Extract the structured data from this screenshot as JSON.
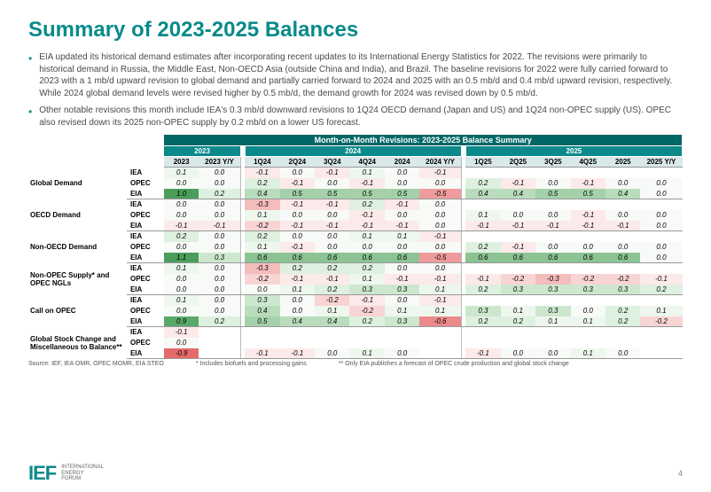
{
  "title": "Summary of 2023-2025 Balances",
  "bullets": [
    "EIA updated its historical demand estimates after incorporating recent updates to its International Energy Statistics for 2022. The revisions were primarily to historical demand in Russia, the Middle East, Non-OECD Asia (outside China and India), and Brazil. The baseline revisions for 2022 were fully carried forward to 2023 with a 1 mb/d upward revision to global demand and partially carried forward to 2024 and 2025 with an 0.5 mb/d and 0.4 mb/d upward revision, respectively. While 2024 global demand levels were revised higher by 0.5 mb/d, the demand growth for 2024 was revised down by 0.5 mb/d.",
    "Other notable revisions this month include IEA's 0.3 mb/d downward revisions to 1Q24 OECD demand (Japan and US) and 1Q24 non-OPEC supply (US). OPEC also revised down its 2025 non-OPEC supply by 0.2 mb/d on a lower US forecast."
  ],
  "table": {
    "header_main": "Month-on-Month Revisions: 2023-2025 Balance Summary",
    "year_headers": [
      "2023",
      "2024",
      "2025"
    ],
    "cols_2023": [
      "2023",
      "2023 Y/Y"
    ],
    "cols_2024": [
      "1Q24",
      "2Q24",
      "3Q24",
      "4Q24",
      "2024",
      "2024 Y/Y"
    ],
    "cols_2025": [
      "1Q25",
      "2Q25",
      "3Q25",
      "4Q25",
      "2025",
      "2025 Y/Y"
    ],
    "row_groups": [
      {
        "label": "Global Demand",
        "rows": [
          {
            "agency": "IEA",
            "v2023": [
              "0.1",
              "0.0"
            ],
            "v2024": [
              "-0.1",
              "0.0",
              "-0.1",
              "0.1",
              "0.0",
              "-0.1"
            ],
            "v2025": [
              "",
              "",
              "",
              "",
              "",
              ""
            ]
          },
          {
            "agency": "OPEC",
            "v2023": [
              "0.0",
              "0.0"
            ],
            "v2024": [
              "0.2",
              "-0.1",
              "0.0",
              "-0.1",
              "0.0",
              "0.0"
            ],
            "v2025": [
              "0.2",
              "-0.1",
              "0.0",
              "-0.1",
              "0.0",
              "0.0"
            ]
          },
          {
            "agency": "EIA",
            "v2023": [
              "1.0",
              "0.2"
            ],
            "v2024": [
              "0.4",
              "0.5",
              "0.5",
              "0.5",
              "0.5",
              "-0.5"
            ],
            "v2025": [
              "0.4",
              "0.4",
              "0.5",
              "0.5",
              "0.4",
              "0.0"
            ]
          }
        ]
      },
      {
        "label": "OECD Demand",
        "rows": [
          {
            "agency": "IEA",
            "v2023": [
              "0.0",
              "0.0"
            ],
            "v2024": [
              "-0.3",
              "-0.1",
              "-0.1",
              "0.2",
              "-0.1",
              "0.0"
            ],
            "v2025": [
              "",
              "",
              "",
              "",
              "",
              ""
            ]
          },
          {
            "agency": "OPEC",
            "v2023": [
              "0.0",
              "0.0"
            ],
            "v2024": [
              "0.1",
              "0.0",
              "0.0",
              "-0.1",
              "0.0",
              "0.0"
            ],
            "v2025": [
              "0.1",
              "0.0",
              "0.0",
              "-0.1",
              "0.0",
              "0.0"
            ]
          },
          {
            "agency": "EIA",
            "v2023": [
              "-0.1",
              "-0.1"
            ],
            "v2024": [
              "-0.2",
              "-0.1",
              "-0.1",
              "-0.1",
              "-0.1",
              "0.0"
            ],
            "v2025": [
              "-0.1",
              "-0.1",
              "-0.1",
              "-0.1",
              "-0.1",
              "0.0"
            ]
          }
        ]
      },
      {
        "label": "Non-OECD Demand",
        "rows": [
          {
            "agency": "IEA",
            "v2023": [
              "0.2",
              "0.0"
            ],
            "v2024": [
              "0.2",
              "0.0",
              "0.0",
              "0.1",
              "0.1",
              "-0.1"
            ],
            "v2025": [
              "",
              "",
              "",
              "",
              "",
              ""
            ]
          },
          {
            "agency": "OPEC",
            "v2023": [
              "0.0",
              "0.0"
            ],
            "v2024": [
              "0.1",
              "-0.1",
              "0.0",
              "0.0",
              "0.0",
              "0.0"
            ],
            "v2025": [
              "0.2",
              "-0.1",
              "0.0",
              "0.0",
              "0.0",
              "0.0"
            ]
          },
          {
            "agency": "EIA",
            "v2023": [
              "1.1",
              "0.3"
            ],
            "v2024": [
              "0.6",
              "0.6",
              "0.6",
              "0.6",
              "0.6",
              "-0.5"
            ],
            "v2025": [
              "0.6",
              "0.6",
              "0.6",
              "0.6",
              "0.6",
              "0.0"
            ]
          }
        ]
      },
      {
        "label": "Non-OPEC Supply* and OPEC NGLs",
        "rows": [
          {
            "agency": "IEA",
            "v2023": [
              "0.1",
              "0.0"
            ],
            "v2024": [
              "-0.3",
              "0.2",
              "0.2",
              "0.2",
              "0.0",
              "0.0"
            ],
            "v2025": [
              "",
              "",
              "",
              "",
              "",
              ""
            ]
          },
          {
            "agency": "OPEC",
            "v2023": [
              "0.0",
              "0.0"
            ],
            "v2024": [
              "-0.2",
              "-0.1",
              "-0.1",
              "0.1",
              "-0.1",
              "-0.1"
            ],
            "v2025": [
              "-0.1",
              "-0.2",
              "-0.3",
              "-0.2",
              "-0.2",
              "-0.1"
            ]
          },
          {
            "agency": "EIA",
            "v2023": [
              "0.0",
              "0.0"
            ],
            "v2024": [
              "0.0",
              "0.1",
              "0.2",
              "0.3",
              "0.3",
              "0.1"
            ],
            "v2025": [
              "0.2",
              "0.3",
              "0.3",
              "0.3",
              "0.3",
              "0.2"
            ]
          }
        ]
      },
      {
        "label": "Call on OPEC",
        "rows": [
          {
            "agency": "IEA",
            "v2023": [
              "0.1",
              "0.0"
            ],
            "v2024": [
              "0.3",
              "0.0",
              "-0.2",
              "-0.1",
              "0.0",
              "-0.1"
            ],
            "v2025": [
              "",
              "",
              "",
              "",
              "",
              ""
            ]
          },
          {
            "agency": "OPEC",
            "v2023": [
              "0.0",
              "0.0"
            ],
            "v2024": [
              "0.4",
              "0.0",
              "0.1",
              "-0.2",
              "0.1",
              "0.1"
            ],
            "v2025": [
              "0.3",
              "0.1",
              "0.3",
              "0.0",
              "0.2",
              "0.1"
            ]
          },
          {
            "agency": "EIA",
            "v2023": [
              "0.9",
              "0.2"
            ],
            "v2024": [
              "0.5",
              "0.4",
              "0.4",
              "0.2",
              "0.3",
              "-0.6"
            ],
            "v2025": [
              "0.2",
              "0.2",
              "0.1",
              "0.1",
              "0.2",
              "-0.2"
            ]
          }
        ]
      },
      {
        "label": "Global Stock Change and Miscellaneous to Balance**",
        "rows": [
          {
            "agency": "IEA",
            "v2023": [
              "-0.1",
              ""
            ],
            "v2024": [
              "",
              "",
              "",
              "",
              "",
              ""
            ],
            "v2025": [
              "",
              "",
              "",
              "",
              "",
              ""
            ]
          },
          {
            "agency": "OPEC",
            "v2023": [
              "0.0",
              ""
            ],
            "v2024": [
              "",
              "",
              "",
              "",
              "",
              ""
            ],
            "v2025": [
              "",
              "",
              "",
              "",
              "",
              ""
            ]
          },
          {
            "agency": "EIA",
            "v2023": [
              "-0.9",
              ""
            ],
            "v2024": [
              "-0.1",
              "-0.1",
              "0.0",
              "0.1",
              "0.0",
              ""
            ],
            "v2025": [
              "-0.1",
              "0.0",
              "0.0",
              "0.1",
              "0.0",
              ""
            ]
          }
        ]
      }
    ],
    "color_map": {
      "1.1": "#4a9d5a",
      "1.0": "#4a9d5a",
      "0.9": "#5aa868",
      "0.6": "#8bc393",
      "0.5": "#a4d1aa",
      "0.4": "#b9dcbd",
      "0.3": "#cde7cf",
      "0.2": "#def0df",
      "0.1": "#eef7ee",
      "0.0": "#f7faf7",
      "-0.1": "#fce9e9",
      "-0.2": "#f9d4d4",
      "-0.3": "#f5bcbc",
      "-0.5": "#ef9b9b",
      "-0.6": "#ec8a8a",
      "-0.9": "#e56a6a"
    }
  },
  "source": "Source: IEF, IEA OMR, OPEC MOMR, EIA STEO",
  "note1": "* Includes biofuels and processing gains",
  "note2": "** Only EIA publishes a forecast of OPEC crude production and global stock change",
  "logo_text": "INTERNATIONAL\nENERGY\nFORUM",
  "logo_mark": "IEF",
  "page_num": "4"
}
